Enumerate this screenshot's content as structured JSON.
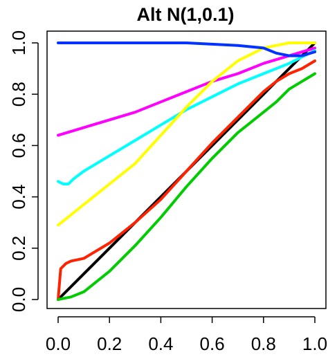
{
  "chart_data": {
    "type": "line",
    "title": "Alt N(1,0.1)",
    "xlabel": "",
    "ylabel": "",
    "xlim": [
      0,
      1
    ],
    "ylim": [
      0,
      1
    ],
    "x_ticks": [
      0.0,
      0.2,
      0.4,
      0.6,
      0.8,
      1.0
    ],
    "x_tick_labels": [
      "0.0",
      "0.2",
      "0.4",
      "0.6",
      "0.8",
      "1.0"
    ],
    "y_ticks": [
      0.0,
      0.2,
      0.4,
      0.6,
      0.8,
      1.0
    ],
    "y_tick_labels": [
      "0.0",
      "0.2",
      "0.4",
      "0.6",
      "0.8",
      "1.0"
    ],
    "grid": false,
    "legend": "none",
    "series": [
      {
        "color": "#000000",
        "x": [
          0,
          1
        ],
        "y": [
          0,
          1
        ]
      },
      {
        "color": "#ff00ff",
        "x": [
          0,
          0.1,
          0.2,
          0.3,
          0.4,
          0.5,
          0.6,
          0.7,
          0.8,
          0.9,
          1.0
        ],
        "y": [
          0.64,
          0.67,
          0.7,
          0.73,
          0.77,
          0.81,
          0.85,
          0.88,
          0.92,
          0.95,
          0.98
        ]
      },
      {
        "color": "#00ffff",
        "x": [
          0,
          0.02,
          0.04,
          0.06,
          0.1,
          0.2,
          0.3,
          0.4,
          0.5,
          0.6,
          0.7,
          0.8,
          0.9,
          1.0
        ],
        "y": [
          0.46,
          0.45,
          0.45,
          0.47,
          0.5,
          0.56,
          0.62,
          0.68,
          0.74,
          0.79,
          0.84,
          0.88,
          0.92,
          0.97
        ]
      },
      {
        "color": "#ffff00",
        "x": [
          0,
          0.1,
          0.2,
          0.3,
          0.4,
          0.5,
          0.6,
          0.7,
          0.8,
          0.85,
          0.9,
          1.0
        ],
        "y": [
          0.29,
          0.37,
          0.45,
          0.53,
          0.64,
          0.75,
          0.85,
          0.93,
          0.98,
          0.99,
          1.0,
          1.0
        ]
      },
      {
        "color": "#0033ff",
        "x": [
          0,
          0.2,
          0.4,
          0.5,
          0.6,
          0.7,
          0.8,
          0.85,
          0.9,
          0.95,
          1.0
        ],
        "y": [
          1.0,
          1.0,
          1.0,
          1.0,
          0.995,
          0.99,
          0.98,
          0.96,
          0.95,
          0.95,
          0.965
        ]
      },
      {
        "color": "#ff2200",
        "x": [
          0,
          0.01,
          0.03,
          0.05,
          0.1,
          0.2,
          0.3,
          0.4,
          0.5,
          0.6,
          0.7,
          0.8,
          0.85,
          0.9,
          0.95,
          1.0
        ],
        "y": [
          0.0,
          0.12,
          0.14,
          0.15,
          0.16,
          0.22,
          0.3,
          0.39,
          0.5,
          0.61,
          0.71,
          0.81,
          0.85,
          0.88,
          0.9,
          0.93
        ]
      },
      {
        "color": "#00cc00",
        "x": [
          0,
          0.05,
          0.1,
          0.2,
          0.3,
          0.4,
          0.5,
          0.6,
          0.7,
          0.8,
          0.85,
          0.9,
          0.95,
          1.0
        ],
        "y": [
          0.0,
          0.01,
          0.03,
          0.11,
          0.21,
          0.32,
          0.44,
          0.55,
          0.65,
          0.73,
          0.77,
          0.82,
          0.85,
          0.88
        ]
      }
    ]
  }
}
